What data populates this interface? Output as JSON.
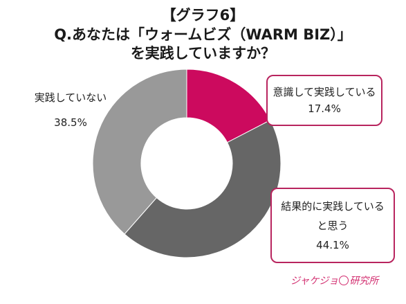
{
  "title_line1": "【グラフ6】",
  "title_line2": "Q.あなたは「ウォームビズ（WARM BIZ）」",
  "title_line3": "を実践していますか？",
  "chart_data": {
    "type": "pie",
    "donut": true,
    "start": "top",
    "direction": "clockwise",
    "slices": [
      {
        "label": "意識して実践している",
        "value": 17.4,
        "value_label": "17.4%",
        "color": "#cc0a5e"
      },
      {
        "label": "結果的に実践していると思う",
        "label_line1": "結果的に実践している",
        "label_line2": "と思う",
        "value": 44.1,
        "value_label": "44.1%",
        "color": "#666666"
      },
      {
        "label": "実践していない",
        "value": 38.5,
        "value_label": "38.5%",
        "color": "#999999"
      }
    ]
  },
  "callout_border_color": "#b8245e",
  "logo_text": "ジャケジョ研究所"
}
